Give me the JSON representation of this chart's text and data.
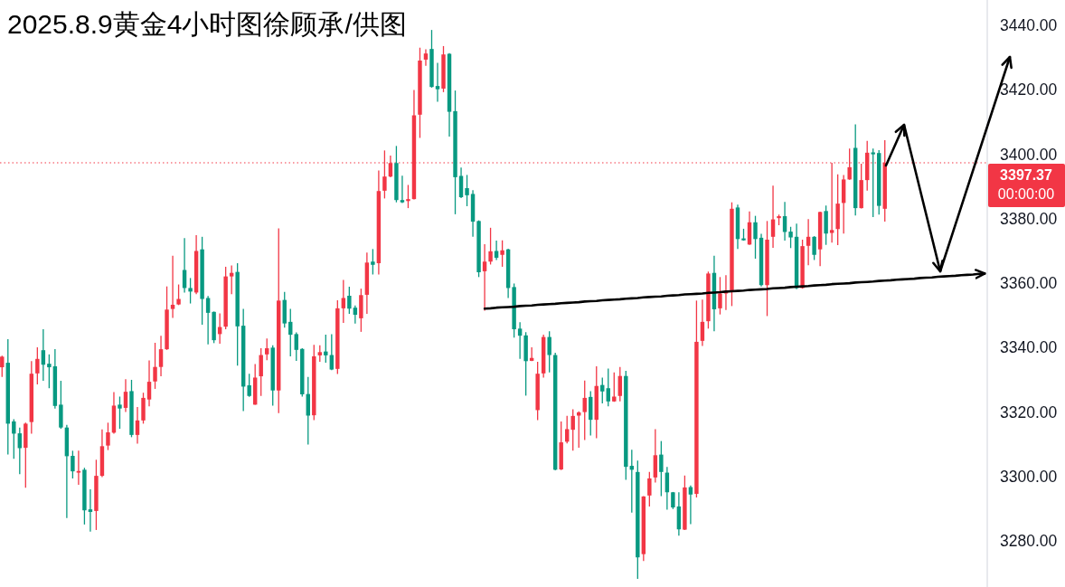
{
  "chart_data": {
    "type": "candlestick",
    "title": "2025.8.9黄金4小时图徐顾承/供图",
    "tick_labels": "y",
    "categories": [
      null,
      null,
      null,
      null,
      null,
      null,
      null,
      null,
      null,
      null,
      null,
      null,
      null,
      null,
      null,
      null,
      null,
      null,
      null,
      null,
      null,
      null,
      null,
      null,
      null,
      null,
      null,
      null,
      null,
      null,
      null,
      null,
      null,
      null,
      null,
      null,
      null,
      null,
      null,
      null,
      null,
      null,
      null,
      null,
      null,
      null,
      null,
      null,
      null,
      null,
      null,
      null,
      null,
      null,
      null,
      null,
      null,
      null,
      null,
      null,
      null,
      null,
      null,
      null,
      null,
      null,
      null,
      null,
      null,
      null,
      null,
      null,
      null,
      null,
      null,
      null,
      null,
      null,
      null,
      null,
      null,
      null,
      null,
      null,
      null,
      null,
      null,
      null,
      null,
      null,
      null,
      null,
      null,
      null,
      null,
      null,
      null,
      null,
      null,
      null,
      null,
      null,
      null,
      null,
      null,
      null,
      null,
      null,
      null,
      null,
      null,
      null,
      null,
      null,
      null,
      null,
      null,
      null,
      null,
      null,
      null,
      null,
      null,
      null,
      null,
      null,
      null,
      null,
      null,
      null,
      null,
      null,
      null,
      null,
      null,
      null,
      null,
      null,
      null,
      null,
      null,
      null,
      null,
      null,
      null,
      null,
      null,
      null,
      null,
      null,
      null,
      null,
      null,
      null,
      null,
      null,
      null,
      null,
      null,
      null,
      null,
      null,
      null,
      null,
      null,
      null,
      null,
      null
    ],
    "ohlc": [
      [
        3333.9,
        3337.5,
        3330.9,
        3337.2
      ],
      [
        3335.3,
        3342.6,
        3306.8,
        3316.4
      ],
      [
        3317.1,
        3317.8,
        3305.5,
        3313.3
      ],
      [
        3313.4,
        3315.2,
        3300.7,
        3308.8
      ],
      [
        3308.9,
        3316.7,
        3296.5,
        3316.4
      ],
      [
        3316.9,
        3335.8,
        3313.3,
        3331.9
      ],
      [
        3332.0,
        3340.1,
        3328.6,
        3336.5
      ],
      [
        3339.2,
        3345.7,
        3329.7,
        3334.7
      ],
      [
        3335.0,
        3337.9,
        3327.4,
        3333.9
      ],
      [
        3334.2,
        3339.5,
        3321.1,
        3321.9
      ],
      [
        3322.3,
        3329.7,
        3314.8,
        3315.2
      ],
      [
        3315.2,
        3316.0,
        3287.1,
        3306.3
      ],
      [
        3306.4,
        3308.0,
        3299.4,
        3301.6
      ],
      [
        3301.2,
        3308.0,
        3297.4,
        3301.7
      ],
      [
        3302.1,
        3302.7,
        3285.1,
        3289.5
      ],
      [
        3289.8,
        3296.0,
        3282.9,
        3289.0
      ],
      [
        3289.3,
        3305.2,
        3283.4,
        3300.2
      ],
      [
        3300.2,
        3314.6,
        3299.8,
        3309.4
      ],
      [
        3309.6,
        3316.7,
        3308.2,
        3313.7
      ],
      [
        3313.6,
        3326.2,
        3313.3,
        3322.0
      ],
      [
        3322.3,
        3324.8,
        3314.8,
        3321.1
      ],
      [
        3321.3,
        3330.2,
        3320.0,
        3326.3
      ],
      [
        3326.5,
        3330.0,
        3312.2,
        3312.9
      ],
      [
        3312.9,
        3321.6,
        3310.2,
        3317.4
      ],
      [
        3317.4,
        3326.0,
        3316.4,
        3324.4
      ],
      [
        3323.9,
        3336.0,
        3321.8,
        3329.4
      ],
      [
        3329.5,
        3341.5,
        3327.2,
        3334.0
      ],
      [
        3334.0,
        3343.7,
        3331.1,
        3339.5
      ],
      [
        3339.5,
        3359.0,
        3339.3,
        3351.8
      ],
      [
        3352.0,
        3368.5,
        3349.2,
        3353.3
      ],
      [
        3353.4,
        3359.6,
        3353.2,
        3355.1
      ],
      [
        3364.1,
        3374.0,
        3357.1,
        3358.5
      ],
      [
        3358.5,
        3361.6,
        3353.7,
        3357.4
      ],
      [
        3357.1,
        3374.9,
        3356.6,
        3370.0
      ],
      [
        3370.5,
        3374.4,
        3347.1,
        3355.1
      ],
      [
        3355.4,
        3356.0,
        3341.0,
        3350.8
      ],
      [
        3351.1,
        3351.2,
        3341.4,
        3342.3
      ],
      [
        3344.2,
        3350.6,
        3341.2,
        3346.4
      ],
      [
        3346.5,
        3365.1,
        3345.7,
        3362.1
      ],
      [
        3362.1,
        3365.5,
        3356.6,
        3363.2
      ],
      [
        3363.5,
        3366.2,
        3334.4,
        3346.6
      ],
      [
        3346.8,
        3352.0,
        3320.3,
        3327.9
      ],
      [
        3328.3,
        3331.9,
        3324.7,
        3325.0
      ],
      [
        3322.3,
        3334.9,
        3322.3,
        3330.7
      ],
      [
        3331.1,
        3339.8,
        3325.0,
        3337.7
      ],
      [
        3337.9,
        3342.8,
        3336.1,
        3339.8
      ],
      [
        3340.0,
        3340.7,
        3322.0,
        3326.7
      ],
      [
        3326.7,
        3377.0,
        3319.7,
        3354.6
      ],
      [
        3354.8,
        3357.3,
        3346.2,
        3347.5
      ],
      [
        3348.0,
        3352.0,
        3337.3,
        3344.0
      ],
      [
        3344.2,
        3344.7,
        3335.9,
        3339.3
      ],
      [
        3339.6,
        3339.8,
        3324.8,
        3325.5
      ],
      [
        3325.6,
        3330.9,
        3309.9,
        3318.9
      ],
      [
        3319.0,
        3340.9,
        3317.5,
        3337.3
      ],
      [
        3337.6,
        3340.7,
        3335.6,
        3338.6
      ],
      [
        3338.8,
        3344.0,
        3335.3,
        3337.6
      ],
      [
        3337.7,
        3344.2,
        3333.0,
        3333.2
      ],
      [
        3333.4,
        3354.7,
        3331.8,
        3352.2
      ],
      [
        3352.2,
        3361.0,
        3347.7,
        3355.4
      ],
      [
        3356.1,
        3358.9,
        3350.5,
        3352.1
      ],
      [
        3352.4,
        3353.1,
        3347.5,
        3350.2
      ],
      [
        3349.1,
        3358.3,
        3344.9,
        3356.3
      ],
      [
        3356.4,
        3369.5,
        3350.5,
        3366.4
      ],
      [
        3366.7,
        3370.6,
        3362.7,
        3365.7
      ],
      [
        3366.2,
        3395.0,
        3362.7,
        3388.6
      ],
      [
        3388.7,
        3401.2,
        3386.3,
        3393.1
      ],
      [
        3393.1,
        3399.6,
        3392.9,
        3397.3
      ],
      [
        3397.3,
        3402.6,
        3385.1,
        3385.8
      ],
      [
        3385.8,
        3393.4,
        3384.9,
        3385.1
      ],
      [
        3385.5,
        3390.5,
        3383.3,
        3386.1
      ],
      [
        3386.1,
        3420.0,
        3386.0,
        3412.1
      ],
      [
        3412.3,
        3433.1,
        3405.1,
        3429.1
      ],
      [
        3429.4,
        3432.6,
        3427.5,
        3431.3
      ],
      [
        3432.7,
        3438.6,
        3420.7,
        3420.9
      ],
      [
        3421.2,
        3428.4,
        3416.3,
        3420.2
      ],
      [
        3420.4,
        3433.6,
        3419.3,
        3431.0
      ],
      [
        3431.2,
        3431.4,
        3405.5,
        3413.2
      ],
      [
        3413.4,
        3419.8,
        3381.4,
        3392.9
      ],
      [
        3393.3,
        3395.9,
        3386.4,
        3386.7
      ],
      [
        3389.5,
        3393.6,
        3383.9,
        3387.3
      ],
      [
        3387.7,
        3388.9,
        3374.4,
        3379.1
      ],
      [
        3379.3,
        3379.5,
        3361.9,
        3363.4
      ],
      [
        3363.7,
        3372.1,
        3351.5,
        3366.7
      ],
      [
        3366.7,
        3377.2,
        3365.8,
        3369.9
      ],
      [
        3370.0,
        3373.2,
        3367.2,
        3367.9
      ],
      [
        3368.8,
        3373.3,
        3365.1,
        3370.2
      ],
      [
        3370.5,
        3370.7,
        3355.4,
        3358.5
      ],
      [
        3358.8,
        3359.9,
        3343.1,
        3345.7
      ],
      [
        3345.9,
        3347.9,
        3336.5,
        3343.7
      ],
      [
        3343.8,
        3344.8,
        3325.1,
        3335.8
      ],
      [
        3335.9,
        3340.1,
        3335.8,
        3336.8
      ],
      [
        3320.6,
        3335.6,
        3317.5,
        3331.9
      ],
      [
        3332.0,
        3344.0,
        3330.7,
        3343.3
      ],
      [
        3343.3,
        3345.1,
        3332.3,
        3337.7
      ],
      [
        3337.7,
        3338.4,
        3301.9,
        3302.1
      ],
      [
        3302.2,
        3317.1,
        3302.0,
        3310.6
      ],
      [
        3310.8,
        3318.8,
        3310.3,
        3314.7
      ],
      [
        3314.5,
        3320.9,
        3308.0,
        3318.8
      ],
      [
        3318.9,
        3320.2,
        3308.9,
        3319.9
      ],
      [
        3320.0,
        3329.8,
        3311.3,
        3324.4
      ],
      [
        3324.7,
        3326.5,
        3312.7,
        3317.6
      ],
      [
        3317.6,
        3334.2,
        3311.9,
        3328.1
      ],
      [
        3328.4,
        3330.7,
        3322.7,
        3326.4
      ],
      [
        3327.4,
        3333.5,
        3321.8,
        3323.3
      ],
      [
        3323.3,
        3332.3,
        3323.2,
        3324.8
      ],
      [
        3325.0,
        3334.0,
        3323.3,
        3331.2
      ],
      [
        3331.2,
        3332.8,
        3299.0,
        3303.0
      ],
      [
        3303.3,
        3308.3,
        3288.8,
        3302.1
      ],
      [
        3301.4,
        3304.9,
        3268.2,
        3274.9
      ],
      [
        3275.9,
        3293.9,
        3273.8,
        3293.8
      ],
      [
        3294.1,
        3301.4,
        3290.7,
        3299.4
      ],
      [
        3299.7,
        3314.7,
        3298.1,
        3306.6
      ],
      [
        3306.8,
        3311.0,
        3293.9,
        3301.4
      ],
      [
        3301.2,
        3303.0,
        3289.7,
        3295.1
      ],
      [
        3295.1,
        3295.2,
        3289.9,
        3290.4
      ],
      [
        3290.7,
        3295.1,
        3281.6,
        3283.6
      ],
      [
        3283.5,
        3300.3,
        3283.4,
        3296.6
      ],
      [
        3296.7,
        3297.2,
        3285.2,
        3294.4
      ],
      [
        3294.6,
        3354.6,
        3293.5,
        3341.8
      ],
      [
        3342.1,
        3354.9,
        3340.5,
        3348.0
      ],
      [
        3348.2,
        3363.6,
        3345.9,
        3363.0
      ],
      [
        3363.2,
        3368.5,
        3345.1,
        3351.9
      ],
      [
        3352.2,
        3361.9,
        3350.3,
        3356.8
      ],
      [
        3356.8,
        3362.5,
        3351.7,
        3357.7
      ],
      [
        3357.8,
        3385.1,
        3352.9,
        3383.1
      ],
      [
        3383.5,
        3384.4,
        3370.6,
        3373.7
      ],
      [
        3373.9,
        3376.9,
        3373.2,
        3373.3
      ],
      [
        3372.0,
        3382.3,
        3371.9,
        3378.9
      ],
      [
        3378.9,
        3380.9,
        3367.6,
        3373.7
      ],
      [
        3374.1,
        3375.3,
        3359.0,
        3359.4
      ],
      [
        3359.4,
        3379.3,
        3349.8,
        3373.5
      ],
      [
        3374.4,
        3390.3,
        3371.0,
        3379.8
      ],
      [
        3380.2,
        3381.3,
        3378.0,
        3380.8
      ],
      [
        3380.8,
        3385.2,
        3373.2,
        3375.9
      ],
      [
        3376.0,
        3377.5,
        3370.9,
        3374.2
      ],
      [
        3374.4,
        3378.5,
        3358.1,
        3358.5
      ],
      [
        3358.5,
        3373.5,
        3358.3,
        3371.5
      ],
      [
        3371.6,
        3379.9,
        3365.6,
        3374.4
      ],
      [
        3374.4,
        3374.6,
        3367.2,
        3368.8
      ],
      [
        3370.5,
        3382.2,
        3365.3,
        3382.1
      ],
      [
        3382.4,
        3384.1,
        3371.9,
        3375.4
      ],
      [
        3375.6,
        3397.4,
        3372.6,
        3376.5
      ],
      [
        3376.8,
        3393.8,
        3371.8,
        3384.7
      ],
      [
        3384.9,
        3393.6,
        3375.4,
        3392.2
      ],
      [
        3392.2,
        3401.8,
        3392.1,
        3396.0
      ],
      [
        3402.0,
        3409.3,
        3381.0,
        3383.3
      ],
      [
        3383.3,
        3397.1,
        3383.2,
        3392.0
      ],
      [
        3392.0,
        3404.2,
        3388.7,
        3400.5
      ],
      [
        3400.6,
        3401.8,
        3380.5,
        3400.0
      ],
      [
        3400.4,
        3401.3,
        3381.3,
        3384.0
      ],
      [
        3383.1,
        3404.4,
        3379.1,
        3397.37
      ],
      null,
      null,
      null,
      null,
      null,
      null,
      null,
      null,
      null,
      null,
      null,
      null,
      null,
      null,
      null,
      null,
      null
    ],
    "colors": [
      "#f23645",
      "#089981",
      "#089981",
      "#089981",
      "#f23645",
      "#f23645",
      "#f23645",
      "#089981",
      "#089981",
      "#089981",
      "#089981",
      "#089981",
      "#089981",
      "#f23645",
      "#089981",
      "#089981",
      "#f23645",
      "#f23645",
      "#f23645",
      "#f23645",
      "#089981",
      "#f23645",
      "#089981",
      "#f23645",
      "#f23645",
      "#f23645",
      "#f23645",
      "#f23645",
      "#f23645",
      "#f23645",
      "#f23645",
      "#089981",
      "#089981",
      "#f23645",
      "#089981",
      "#089981",
      "#089981",
      "#f23645",
      "#f23645",
      "#f23645",
      "#089981",
      "#089981",
      "#089981",
      "#f23645",
      "#f23645",
      "#f23645",
      "#089981",
      "#f23645",
      "#089981",
      "#089981",
      "#089981",
      "#089981",
      "#089981",
      "#f23645",
      "#f23645",
      "#089981",
      "#089981",
      "#f23645",
      "#f23645",
      "#089981",
      "#089981",
      "#f23645",
      "#f23645",
      "#089981",
      "#f23645",
      "#f23645",
      "#f23645",
      "#089981",
      "#089981",
      "#f23645",
      "#f23645",
      "#f23645",
      "#f23645",
      "#089981",
      "#089981",
      "#f23645",
      "#089981",
      "#089981",
      "#089981",
      "#089981",
      "#089981",
      "#089981",
      "#f23645",
      "#f23645",
      "#089981",
      "#f23645",
      "#089981",
      "#089981",
      "#089981",
      "#089981",
      "#f23645",
      "#f23645",
      "#f23645",
      "#089981",
      "#089981",
      "#f23645",
      "#f23645",
      "#f23645",
      "#f23645",
      "#f23645",
      "#089981",
      "#f23645",
      "#089981",
      "#089981",
      "#f23645",
      "#f23645",
      "#089981",
      "#089981",
      "#089981",
      "#f23645",
      "#f23645",
      "#f23645",
      "#089981",
      "#089981",
      "#089981",
      "#089981",
      "#f23645",
      "#089981",
      "#f23645",
      "#f23645",
      "#f23645",
      "#089981",
      "#f23645",
      "#f23645",
      "#f23645",
      "#089981",
      "#089981",
      "#f23645",
      "#089981",
      "#089981",
      "#f23645",
      "#f23645",
      "#f23645",
      "#089981",
      "#089981",
      "#089981",
      "#f23645",
      "#f23645",
      "#089981",
      "#f23645",
      "#089981",
      "#f23645",
      "#f23645",
      "#f23645",
      "#f23645",
      "#089981",
      "#f23645",
      "#f23645",
      "#089981",
      "#089981",
      "#f23645",
      null,
      null,
      null,
      null,
      null,
      null,
      null,
      null,
      null,
      null,
      null,
      null,
      null,
      null,
      null,
      null,
      null
    ],
    "series": [
      {
        "type": "line",
        "color": "#000000",
        "values": [
          null,
          null,
          null,
          null,
          null,
          null,
          null,
          null,
          null,
          null,
          null,
          null,
          null,
          null,
          null,
          null,
          null,
          null,
          null,
          null,
          null,
          null,
          null,
          null,
          null,
          null,
          null,
          null,
          null,
          null,
          null,
          null,
          null,
          null,
          null,
          null,
          null,
          null,
          null,
          null,
          null,
          null,
          null,
          null,
          null,
          null,
          null,
          null,
          null,
          null,
          null,
          null,
          null,
          null,
          null,
          null,
          null,
          null,
          null,
          null,
          null,
          null,
          null,
          null,
          null,
          null,
          null,
          null,
          null,
          null,
          null,
          null,
          null,
          null,
          null,
          null,
          null,
          null,
          null,
          null,
          null,
          null,
          3352.1,
          3352.2,
          3352.4,
          3352.5,
          3352.6,
          3352.7,
          3352.9,
          3353.0,
          3353.1,
          3353.3,
          3353.4,
          3353.5,
          3353.6,
          3353.8,
          3353.9,
          3354.0,
          3354.1,
          3354.3,
          3354.4,
          3354.5,
          3354.7,
          3354.8,
          3354.9,
          3355.0,
          3355.2,
          3355.3,
          3355.4,
          3355.6,
          3355.7,
          3355.8,
          3355.9,
          3356.1,
          3356.2,
          3356.3,
          3356.5,
          3356.6,
          3356.7,
          3356.8,
          3357.0,
          3357.1,
          3357.2,
          3357.4,
          3357.5,
          3357.6,
          3357.7,
          3357.9,
          3358.0,
          3358.1,
          3358.2,
          3358.4,
          3358.5,
          3358.6,
          3358.8,
          3358.9,
          3359.0,
          3359.1,
          3359.3,
          3359.4,
          3359.5,
          3359.7,
          3359.8,
          3359.9,
          3360.0,
          3360.2,
          3360.3,
          3360.4,
          3360.5,
          3360.7,
          3360.8,
          3360.9,
          3361.1,
          3361.2,
          3361.3,
          3361.4,
          3361.6,
          3361.7,
          3361.8,
          3362.0,
          3362.1,
          3362.2,
          3362.3,
          3362.5,
          3362.6,
          3362.7,
          3362.9,
          3363.0
        ]
      }
    ],
    "ylim": [
      3265.7,
      3447.9
    ],
    "yticks": [
      {
        "value": 3280,
        "label": "3280.00"
      },
      {
        "value": 3300,
        "label": "3300.00"
      },
      {
        "value": 3320,
        "label": "3320.00"
      },
      {
        "value": 3340,
        "label": "3340.00"
      },
      {
        "value": 3360,
        "label": "3360.00"
      },
      {
        "value": 3380,
        "label": "3380.00"
      },
      {
        "value": 3400,
        "label": "3400.00"
      },
      {
        "value": 3420,
        "label": "3420.00"
      },
      {
        "value": 3440,
        "label": "3440.00"
      }
    ],
    "ref_lines": [
      {
        "axis": "y",
        "value": 3397.37,
        "label": "3397.37",
        "color": "#f23645",
        "line_style": "dotted"
      }
    ],
    "annotations": [
      "00:00:00"
    ]
  }
}
